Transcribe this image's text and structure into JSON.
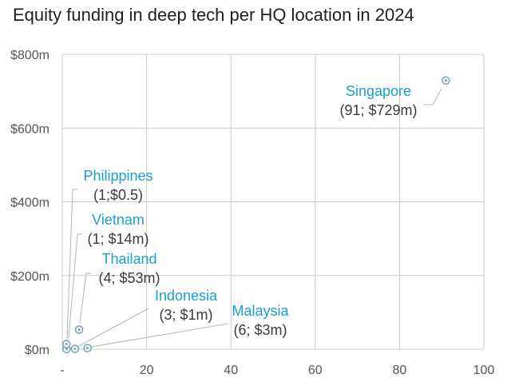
{
  "title": "Equity funding in deep tech per HQ location in 2024",
  "colors": {
    "grid": "#cccccc",
    "tick_text": "#555555",
    "point": "#7aa6b8",
    "name_text": "#1a9fd0",
    "value_text": "#3a3a3a",
    "leader": "#b5b5b5"
  },
  "chart_data": {
    "type": "scatter",
    "title": "Equity funding in deep tech per HQ location in 2024",
    "xlabel": "",
    "ylabel": "",
    "xlim": [
      0,
      100
    ],
    "ylim": [
      0,
      800
    ],
    "x_ticks": [
      {
        "value": 0,
        "label": "-"
      },
      {
        "value": 20,
        "label": "20"
      },
      {
        "value": 40,
        "label": "40"
      },
      {
        "value": 60,
        "label": "60"
      },
      {
        "value": 80,
        "label": "80"
      },
      {
        "value": 100,
        "label": "100"
      }
    ],
    "y_ticks": [
      {
        "value": 0,
        "label": "$0m"
      },
      {
        "value": 200,
        "label": "$200m"
      },
      {
        "value": 400,
        "label": "$400m"
      },
      {
        "value": 600,
        "label": "$600m"
      },
      {
        "value": 800,
        "label": "$800m"
      }
    ],
    "grid": true,
    "points": [
      {
        "name": "Singapore",
        "x": 91,
        "y": 729,
        "value_label": "(91; $729m)"
      },
      {
        "name": "Philippines",
        "x": 1,
        "y": 0.5,
        "value_label": "(1;$0.5)"
      },
      {
        "name": "Vietnam",
        "x": 1,
        "y": 14,
        "value_label": "(1; $14m)"
      },
      {
        "name": "Thailand",
        "x": 4,
        "y": 53,
        "value_label": "(4; $53m)"
      },
      {
        "name": "Indonesia",
        "x": 3,
        "y": 1,
        "value_label": "(3; $1m)"
      },
      {
        "name": "Malaysia",
        "x": 6,
        "y": 3,
        "value_label": "(6; $3m)"
      }
    ]
  }
}
